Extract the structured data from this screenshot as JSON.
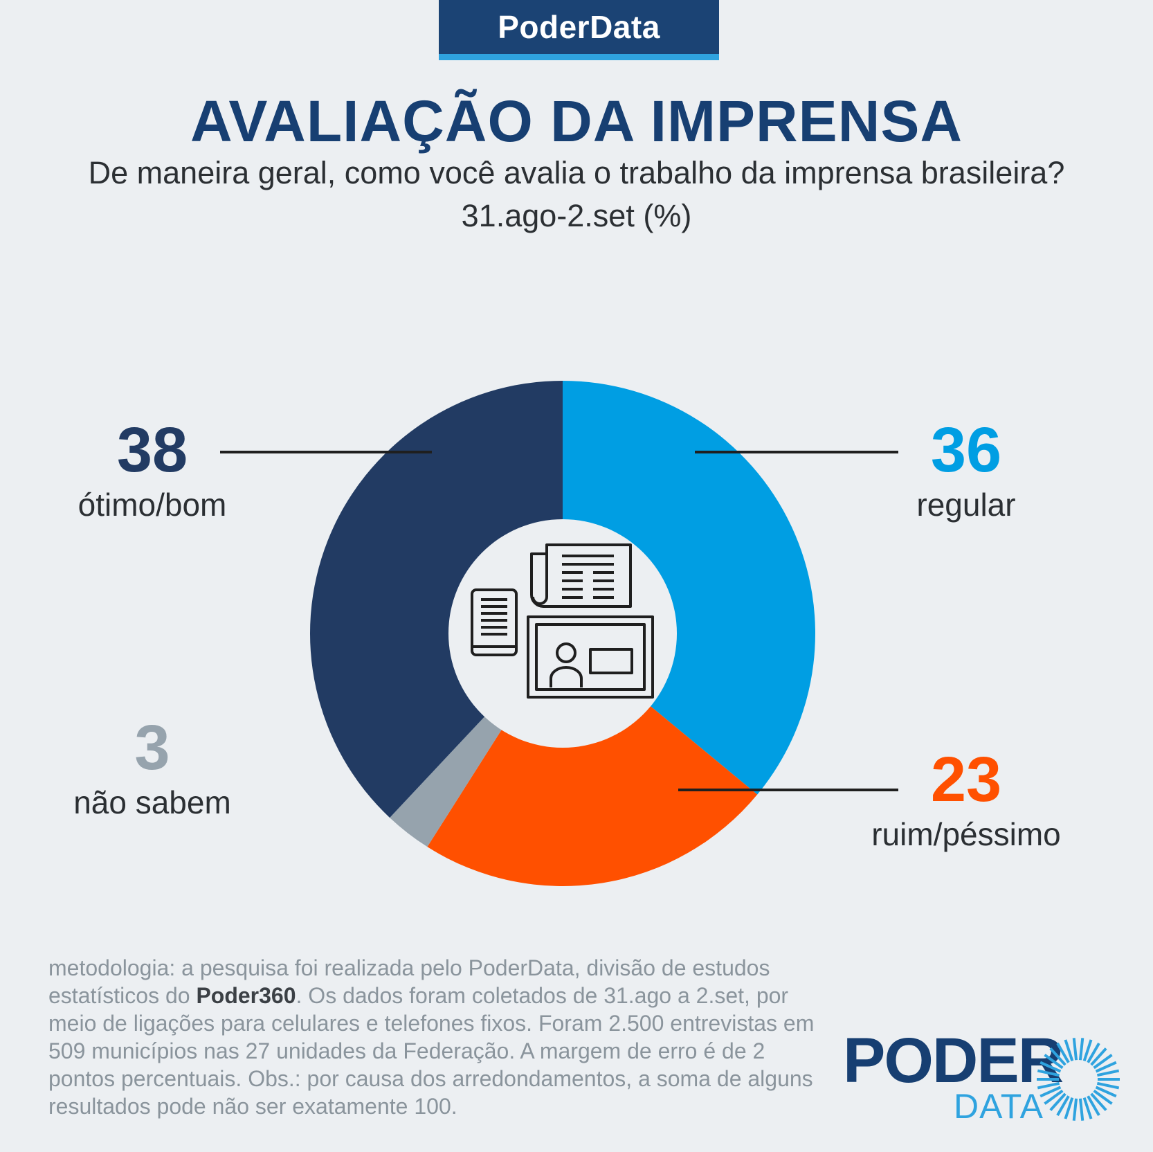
{
  "header": {
    "brand": "PoderData"
  },
  "title": "AVALIAÇÃO DA IMPRENSA",
  "subtitle": "De maneira geral, como você avalia o trabalho da imprensa brasileira?",
  "period": "31.ago-2.set (%)",
  "chart_data": {
    "type": "pie",
    "style": "donut",
    "unit": "%",
    "slices": [
      {
        "name": "regular",
        "value": 36,
        "color": "#009ee3"
      },
      {
        "name": "ruim/péssimo",
        "value": 23,
        "color": "#ff5000"
      },
      {
        "name": "não sabem",
        "value": 3,
        "color": "#96a3ad"
      },
      {
        "name": "ótimo/bom",
        "value": 38,
        "color": "#223b63"
      }
    ],
    "center_icon": "newspaper-tv-media-icon"
  },
  "methodology": {
    "part1": "metodologia: a pesquisa foi realizada pelo PoderData, divisão de estudos estatísticos do ",
    "bold": "Poder360",
    "part2": ". Os dados foram coletados de 31.ago a 2.set, por meio de ligações para celulares e telefones fixos. Foram 2.500 entrevistas em 509 municípios nas 27 unidades da Federação. A margem de erro é de 2 pontos percentuais. Obs.: por causa dos arredondamentos, a soma de alguns resultados pode não ser exatamente 100."
  },
  "logo": {
    "word1": "PODER",
    "word2": "DATA",
    "icon": "sunburst-icon"
  }
}
